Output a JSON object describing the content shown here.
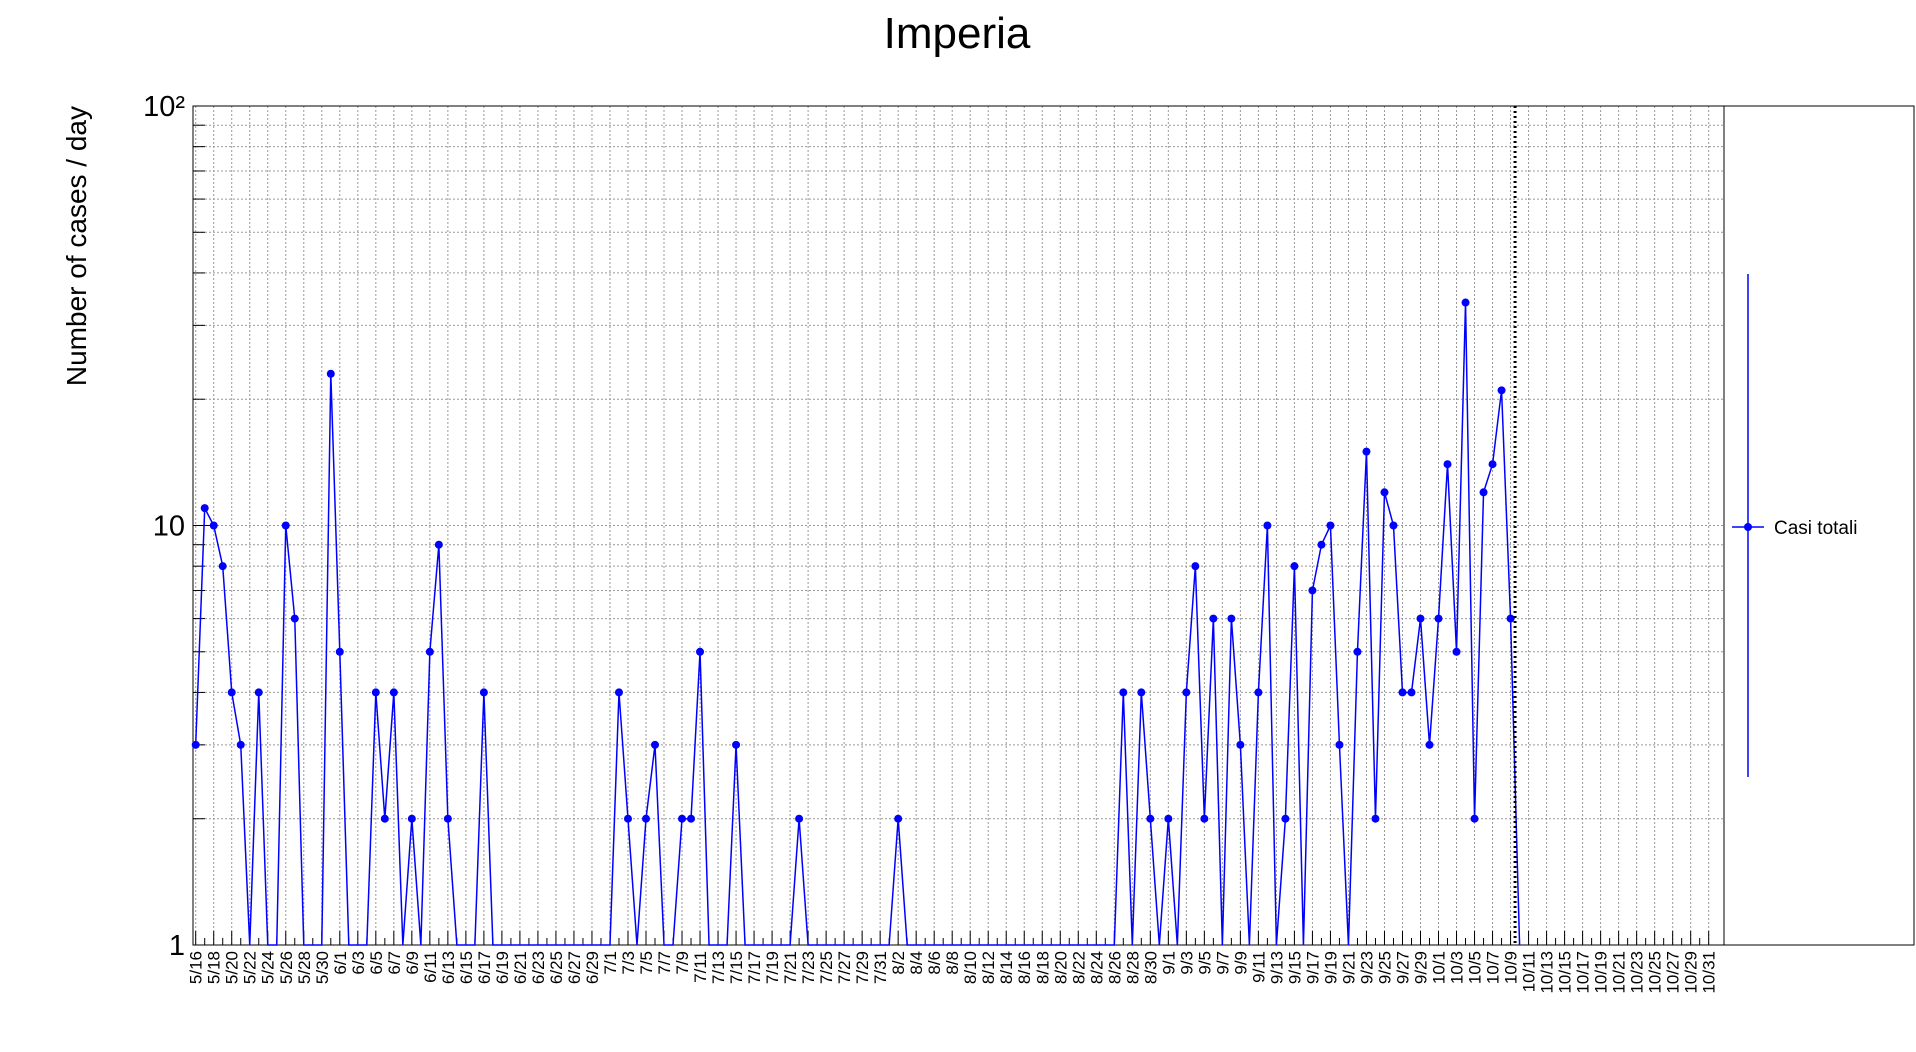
{
  "chart_data": {
    "type": "line",
    "title": "Imperia",
    "y_label": "Number of cases / day",
    "log_scale_y": true,
    "grid": true,
    "legend_position": "right",
    "categories": [
      "5/16",
      null,
      "5/18",
      null,
      "5/20",
      null,
      "5/22",
      null,
      "5/24",
      null,
      "5/26",
      null,
      "5/28",
      null,
      "5/30",
      null,
      "6/1",
      null,
      "6/3",
      null,
      "6/5",
      null,
      "6/7",
      null,
      "6/9",
      null,
      "6/11",
      null,
      "6/13",
      null,
      "6/15",
      null,
      "6/17",
      null,
      "6/19",
      null,
      "6/21",
      null,
      "6/23",
      null,
      "6/25",
      null,
      "6/27",
      null,
      "6/29",
      null,
      "7/1",
      null,
      "7/3",
      null,
      "7/5",
      null,
      "7/7",
      null,
      "7/9",
      null,
      "7/11",
      null,
      "7/13",
      null,
      "7/15",
      null,
      "7/17",
      null,
      "7/19",
      null,
      "7/21",
      null,
      "7/23",
      null,
      "7/25",
      null,
      "7/27",
      null,
      "7/29",
      null,
      "7/31",
      null,
      "8/2",
      null,
      "8/4",
      null,
      "8/6",
      null,
      "8/8",
      null,
      "8/10",
      null,
      "8/12",
      null,
      "8/14",
      null,
      "8/16",
      null,
      "8/18",
      null,
      "8/20",
      null,
      "8/22",
      null,
      "8/24",
      null,
      "8/26",
      null,
      "8/28",
      null,
      "8/30",
      null,
      "9/1",
      null,
      "9/3",
      null,
      "9/5",
      null,
      "9/7",
      null,
      "9/9",
      null,
      "9/11",
      null,
      "9/13",
      null,
      "9/15",
      null,
      "9/17",
      null,
      "9/19",
      null,
      "9/21",
      null,
      "9/23",
      null,
      "9/25",
      null,
      "9/27",
      null,
      "9/29",
      null,
      "10/1",
      null,
      "10/3",
      null,
      "10/5",
      null,
      "10/7",
      null,
      "10/9",
      null,
      "10/11",
      null,
      "10/13",
      null,
      "10/15",
      null,
      "10/17",
      null,
      "10/19",
      null,
      "10/21",
      null,
      "10/23",
      null,
      "10/25",
      null,
      "10/27",
      null,
      "10/29",
      null,
      "10/31"
    ],
    "series": [
      {
        "name": "Casi totali",
        "color": "#0000ff",
        "values": [
          3,
          11,
          10,
          8,
          4,
          3,
          0,
          4,
          0,
          0,
          10,
          6,
          0,
          0,
          0,
          23,
          5,
          0,
          0,
          0,
          4,
          2,
          4,
          0,
          2,
          0,
          5,
          9,
          2,
          0,
          0,
          0,
          4,
          0,
          0,
          0,
          0,
          0,
          0,
          0,
          0,
          0,
          0,
          0,
          0,
          0,
          0,
          4,
          2,
          0,
          2,
          3,
          0,
          0,
          2,
          2,
          5,
          0,
          0,
          0,
          3,
          0,
          0,
          0,
          0,
          0,
          0,
          2,
          0,
          0,
          0,
          0,
          0,
          0,
          0,
          0,
          0,
          0,
          2,
          0,
          0,
          0,
          0,
          0,
          0,
          0,
          0,
          0,
          0,
          0,
          0,
          0,
          0,
          0,
          0,
          0,
          0,
          0,
          0,
          0,
          0,
          0,
          0,
          4,
          0,
          4,
          2,
          0,
          2,
          0,
          4,
          8,
          2,
          6,
          0,
          6,
          3,
          0,
          4,
          10,
          0,
          2,
          8,
          0,
          7,
          9,
          10,
          3,
          0,
          5,
          15,
          2,
          12,
          10,
          4,
          4,
          6,
          3,
          6,
          14,
          5,
          34,
          2,
          12,
          14,
          21,
          6,
          0,
          null,
          null,
          null,
          null,
          null,
          null,
          null,
          null,
          null,
          null,
          null,
          null,
          null,
          null,
          null,
          null,
          null,
          null,
          null,
          null,
          null
        ]
      }
    ],
    "ylim": [
      1,
      100
    ],
    "yticks": [
      1,
      10,
      {
        "value": 100,
        "label": "10²"
      }
    ],
    "yminorticks": [
      2,
      3,
      4,
      5,
      6,
      7,
      8,
      9,
      20,
      30,
      40,
      50,
      60,
      70,
      80,
      90
    ]
  }
}
